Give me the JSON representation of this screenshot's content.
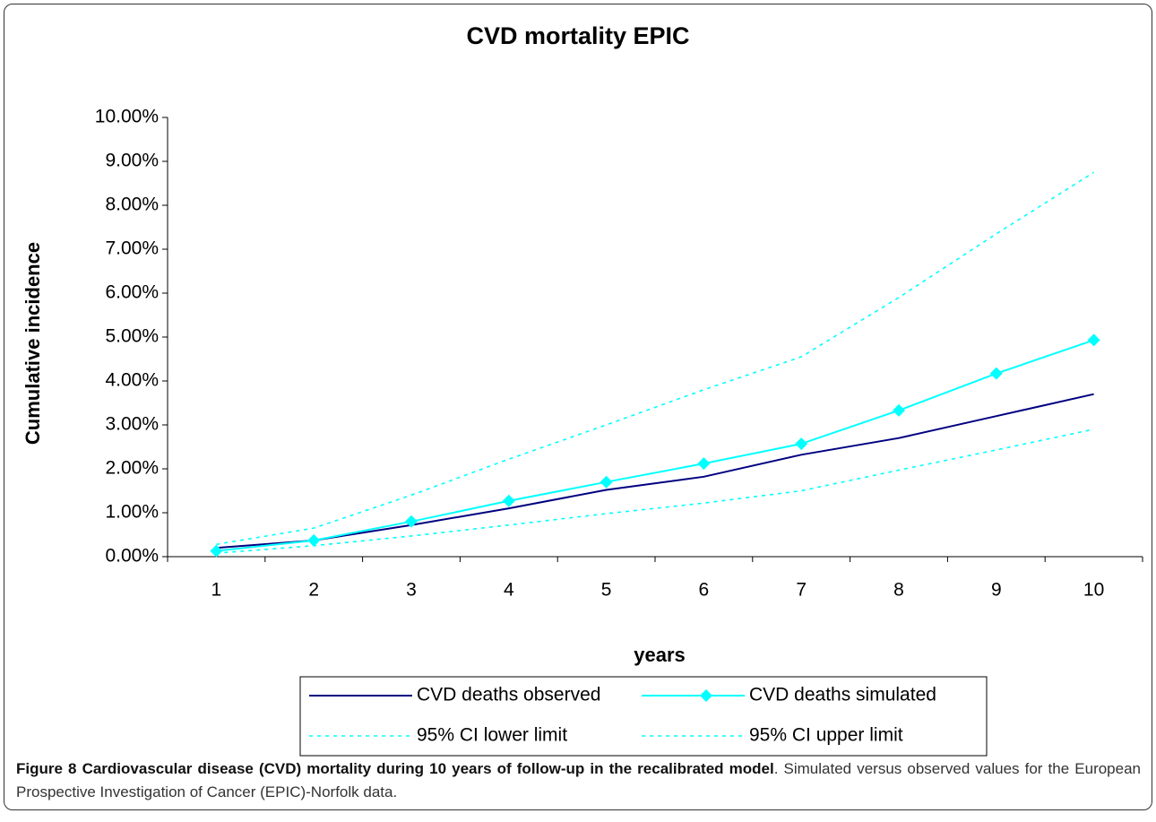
{
  "chart_data": {
    "type": "line",
    "title": "CVD mortality EPIC",
    "x_label": "years",
    "y_label": "Cumulative incidence",
    "categories": [
      "1",
      "2",
      "3",
      "4",
      "5",
      "6",
      "7",
      "8",
      "9",
      "10"
    ],
    "ylim": [
      0,
      10
    ],
    "yticks": [
      {
        "value": 0,
        "label": "0.00%"
      },
      {
        "value": 1,
        "label": "1.00%"
      },
      {
        "value": 2,
        "label": "2.00%"
      },
      {
        "value": 3,
        "label": "3.00%"
      },
      {
        "value": 4,
        "label": "4.00%"
      },
      {
        "value": 5,
        "label": "5.00%"
      },
      {
        "value": 6,
        "label": "6.00%"
      },
      {
        "value": 7,
        "label": "7.00%"
      },
      {
        "value": 8,
        "label": "8.00%"
      },
      {
        "value": 9,
        "label": "9.00%"
      },
      {
        "value": 10,
        "label": "10.00%"
      }
    ],
    "grid": false,
    "series": [
      {
        "name": "CVD deaths observed",
        "color": "#000080",
        "dashed": false,
        "marker": "none",
        "values": [
          0.2,
          0.37,
          0.72,
          1.1,
          1.52,
          1.82,
          2.32,
          2.7,
          3.2,
          3.7
        ]
      },
      {
        "name": "CVD deaths simulated",
        "color": "#00ffff",
        "dashed": false,
        "marker": "diamond",
        "values": [
          0.13,
          0.37,
          0.8,
          1.27,
          1.7,
          2.12,
          2.57,
          3.33,
          4.17,
          4.93
        ]
      },
      {
        "name": "95% CI lower limit",
        "color": "#00ffff",
        "dashed": true,
        "marker": "none",
        "values": [
          0.08,
          0.25,
          0.47,
          0.72,
          0.98,
          1.22,
          1.5,
          1.97,
          2.43,
          2.9
        ]
      },
      {
        "name": "95% CI upper limit",
        "color": "#00ffff",
        "dashed": true,
        "marker": "none",
        "values": [
          0.28,
          0.65,
          1.4,
          2.22,
          3.0,
          3.8,
          4.55,
          5.9,
          7.35,
          8.75
        ]
      }
    ]
  },
  "caption": {
    "bold": "Figure 8 Cardiovascular disease (CVD) mortality during 10 years of follow-up in the recalibrated model",
    "text": ". Simulated versus observed values for the European Prospective Investigation of Cancer (EPIC)-Norfolk data."
  }
}
